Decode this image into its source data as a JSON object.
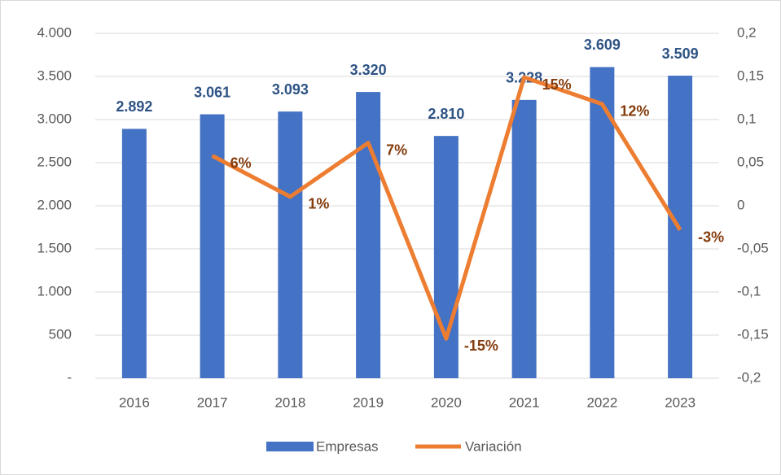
{
  "chart_data": {
    "type": "combo",
    "categories": [
      "2016",
      "2017",
      "2018",
      "2019",
      "2020",
      "2021",
      "2022",
      "2023"
    ],
    "series": [
      {
        "name": "Empresas",
        "type": "bar",
        "color": "#4472c4",
        "values": [
          2892,
          3061,
          3093,
          3320,
          2810,
          3228,
          3609,
          3509
        ],
        "value_labels": [
          "2.892",
          "3.061",
          "3.093",
          "3.320",
          "2.810",
          "3.228",
          "3.609",
          "3.509"
        ]
      },
      {
        "name": "Variación",
        "type": "line",
        "axis": "y2",
        "color": "#ed7d31",
        "values": [
          null,
          0.058,
          0.0105,
          0.073,
          -0.154,
          0.149,
          0.118,
          -0.028
        ],
        "value_labels": [
          null,
          "6%",
          "1%",
          "7%",
          "-15%",
          "15%",
          "12%",
          "-3%"
        ]
      }
    ],
    "ylim": [
      0,
      4000
    ],
    "yticks": [
      {
        "value": 0,
        "label": "-"
      },
      500,
      {
        "value": 1000,
        "label": "1.000"
      },
      {
        "value": 1500,
        "label": "1.500"
      },
      {
        "value": 2000,
        "label": "2.000"
      },
      {
        "value": 2500,
        "label": "2.500"
      },
      {
        "value": 3000,
        "label": "3.000"
      },
      {
        "value": 3500,
        "label": "3.500"
      },
      {
        "value": 4000,
        "label": "4.000"
      }
    ],
    "y2lim": [
      -0.2,
      0.2
    ],
    "y2ticks": [
      {
        "value": -0.2,
        "label": "-0,2"
      },
      {
        "value": -0.15,
        "label": "-0,15"
      },
      {
        "value": -0.1,
        "label": "-0,1"
      },
      {
        "value": -0.05,
        "label": "-0,05"
      },
      0,
      {
        "value": 0.05,
        "label": "0,05"
      },
      {
        "value": 0.1,
        "label": "0,1"
      },
      {
        "value": 0.15,
        "label": "0,15"
      },
      {
        "value": 0.2,
        "label": "0,2"
      }
    ],
    "grid": true,
    "legend": "bottom"
  }
}
